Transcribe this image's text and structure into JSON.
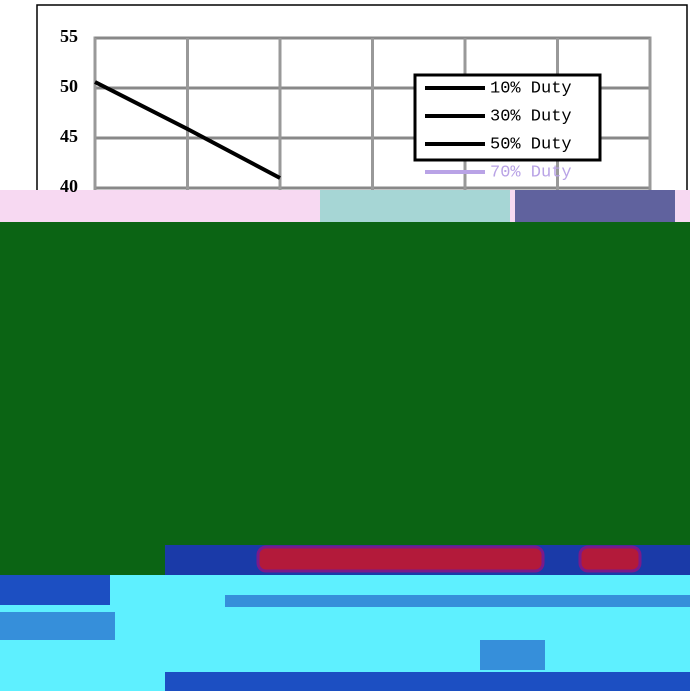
{
  "chart_data": {
    "type": "line",
    "categories": [
      null,
      null,
      null,
      null,
      null,
      null,
      null
    ],
    "series": [
      {
        "name": "10% Duty",
        "color": "#000000",
        "values": [
          50.6,
          45.9,
          41,
          null,
          null,
          null,
          null
        ]
      },
      {
        "name": "30% Duty",
        "color": "#000000",
        "values": [
          null,
          null,
          null,
          null,
          null,
          null,
          null
        ]
      },
      {
        "name": "50% Duty",
        "color": "#000000",
        "values": [
          null,
          null,
          null,
          null,
          null,
          null,
          null
        ]
      },
      {
        "name": "70% Duty",
        "color": "#b9a3e6",
        "values": [
          null,
          null,
          null,
          null,
          null,
          null,
          null
        ]
      }
    ],
    "ylim": [
      40,
      55
    ],
    "yticks": [
      40,
      45,
      50,
      55
    ],
    "grid": true
  }
}
